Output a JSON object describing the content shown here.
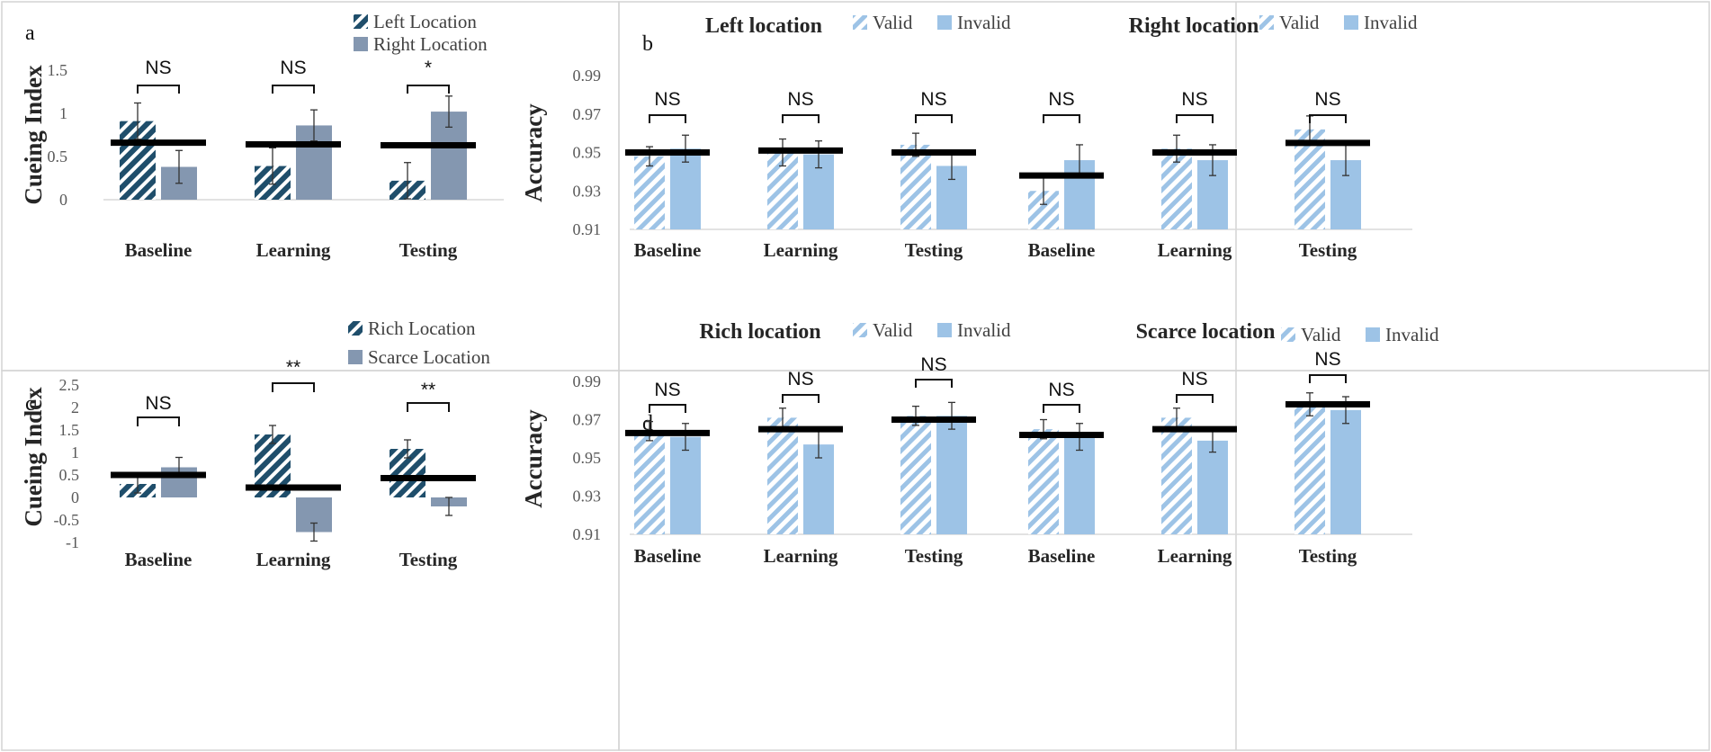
{
  "colors": {
    "dark_hatch": "#1f4e6b",
    "gray_bar": "#8497b0",
    "light_blue": "#9dc3e6",
    "hatch_bg": "#ffffff",
    "mean_line": "#000000"
  },
  "chart_data": [
    {
      "panel": "a",
      "type": "bar",
      "title": "",
      "ylabel": "Cueing Index",
      "ylim": [
        0,
        1.5
      ],
      "yticks": [
        "0",
        "0.5",
        "1",
        "1.5"
      ],
      "ytick_values": [
        0,
        0.5,
        1,
        1.5
      ],
      "categories": [
        "Baseline",
        "Learning",
        "Testing"
      ],
      "series": [
        {
          "name": "Left Location",
          "style": "dark_hatch",
          "values": [
            0.91,
            0.39,
            0.22
          ],
          "errors": [
            0.21,
            0.21,
            0.21
          ]
        },
        {
          "name": "Right Location",
          "style": "gray_bar",
          "values": [
            0.38,
            0.86,
            1.02
          ],
          "errors": [
            0.19,
            0.18,
            0.18
          ]
        }
      ],
      "mean_lines": [
        0.66,
        0.64,
        0.63
      ],
      "significance": [
        "NS",
        "NS",
        "*"
      ]
    },
    {
      "panel": "b",
      "type": "bar",
      "title": "Left location",
      "ylabel": "Accuracy",
      "ylim": [
        0.91,
        0.99
      ],
      "yticks": [
        "0.91",
        "0.93",
        "0.95",
        "0.97",
        "0.99"
      ],
      "ytick_values": [
        0.91,
        0.93,
        0.95,
        0.97,
        0.99
      ],
      "categories": [
        "Baseline",
        "Learning",
        "Testing"
      ],
      "series": [
        {
          "name": "Valid",
          "style": "light_hatch",
          "values": [
            0.948,
            0.95,
            0.954
          ],
          "errors": [
            0.005,
            0.007,
            0.006
          ]
        },
        {
          "name": "Invalid",
          "style": "light_blue",
          "values": [
            0.952,
            0.949,
            0.943
          ],
          "errors": [
            0.007,
            0.007,
            0.007
          ]
        }
      ],
      "mean_lines": [
        0.95,
        0.951,
        0.95
      ],
      "significance": [
        "NS",
        "NS",
        "NS"
      ]
    },
    {
      "panel": "b2",
      "type": "bar",
      "title": "Right location",
      "ylabel": "",
      "ylim": [
        0.91,
        0.99
      ],
      "yticks": [],
      "ytick_values": [
        0.91,
        0.93,
        0.95,
        0.97,
        0.99
      ],
      "categories": [
        "Baseline",
        "Learning",
        "Testing"
      ],
      "series": [
        {
          "name": "Valid",
          "style": "light_hatch",
          "values": [
            0.93,
            0.952,
            0.962
          ],
          "errors": [
            0.007,
            0.007,
            0.007
          ]
        },
        {
          "name": "Invalid",
          "style": "light_blue",
          "values": [
            0.946,
            0.946,
            0.946
          ],
          "errors": [
            0.008,
            0.008,
            0.008
          ]
        }
      ],
      "mean_lines": [
        0.938,
        0.95,
        0.955
      ],
      "significance": [
        "NS",
        "NS",
        "NS"
      ]
    },
    {
      "panel": "c",
      "type": "bar",
      "title": "",
      "ylabel": "Cueing Index",
      "ylim": [
        -1,
        2.5
      ],
      "yticks": [
        "-1",
        "-0.5",
        "0",
        "0.5",
        "1",
        "1.5",
        "2",
        "2.5"
      ],
      "ytick_values": [
        -1,
        -0.5,
        0,
        0.5,
        1,
        1.5,
        2,
        2.5
      ],
      "categories": [
        "Baseline",
        "Learning",
        "Testing"
      ],
      "series": [
        {
          "name": "Rich Location",
          "style": "dark_hatch",
          "values": [
            0.3,
            1.4,
            1.08
          ],
          "errors": [
            0.2,
            0.2,
            0.2
          ]
        },
        {
          "name": "Scarce Location",
          "style": "gray_bar",
          "values": [
            0.67,
            -0.77,
            -0.2
          ],
          "errors": [
            0.22,
            0.2,
            0.2
          ]
        }
      ],
      "mean_lines": [
        0.5,
        0.22,
        0.43
      ],
      "significance": [
        "NS",
        "**",
        "**"
      ]
    },
    {
      "panel": "d",
      "type": "bar",
      "title": "Rich location",
      "ylabel": "Accuracy",
      "ylim": [
        0.91,
        0.99
      ],
      "yticks": [
        "0.91",
        "0.93",
        "0.95",
        "0.97",
        "0.99"
      ],
      "ytick_values": [
        0.91,
        0.93,
        0.95,
        0.97,
        0.99
      ],
      "categories": [
        "Baseline",
        "Learning",
        "Testing"
      ],
      "series": [
        {
          "name": "Valid",
          "style": "light_hatch",
          "values": [
            0.964,
            0.971,
            0.972
          ],
          "errors": [
            0.005,
            0.005,
            0.005
          ]
        },
        {
          "name": "Invalid",
          "style": "light_blue",
          "values": [
            0.961,
            0.957,
            0.972
          ],
          "errors": [
            0.007,
            0.007,
            0.007
          ]
        }
      ],
      "mean_lines": [
        0.963,
        0.965,
        0.97
      ],
      "significance": [
        "NS",
        "NS",
        "NS"
      ]
    },
    {
      "panel": "d2",
      "type": "bar",
      "title": "Scarce location",
      "ylabel": "",
      "ylim": [
        0.91,
        0.99
      ],
      "yticks": [],
      "ytick_values": [
        0.91,
        0.93,
        0.95,
        0.97,
        0.99
      ],
      "categories": [
        "Baseline",
        "Learning",
        "Testing"
      ],
      "series": [
        {
          "name": "Valid",
          "style": "light_hatch",
          "values": [
            0.965,
            0.971,
            0.978
          ],
          "errors": [
            0.005,
            0.005,
            0.006
          ]
        },
        {
          "name": "Invalid",
          "style": "light_blue",
          "values": [
            0.961,
            0.959,
            0.975
          ],
          "errors": [
            0.007,
            0.006,
            0.007
          ]
        }
      ],
      "mean_lines": [
        0.962,
        0.965,
        0.978
      ],
      "significance": [
        "NS",
        "NS",
        "NS"
      ]
    }
  ],
  "panel_letters": {
    "a": "a",
    "b": "b",
    "c": "c",
    "d": "d"
  }
}
